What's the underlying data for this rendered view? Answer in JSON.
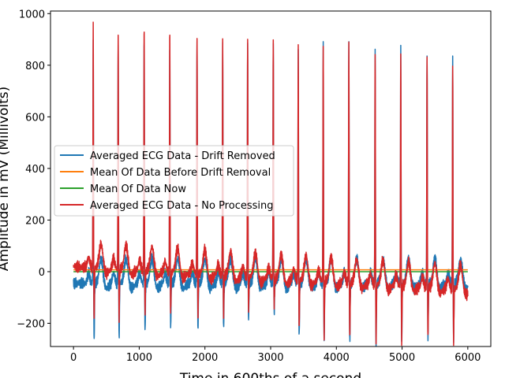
{
  "chart_data": {
    "type": "line",
    "title": "",
    "xlabel": "Time in 600ths of a second",
    "ylabel": "Amplitude in mV (Millivolts)",
    "xlim": [
      -350,
      6350
    ],
    "ylim": [
      -290,
      1010
    ],
    "xticks": [
      0,
      1000,
      2000,
      3000,
      4000,
      5000,
      6000
    ],
    "xtick_labels": [
      "0",
      "1000",
      "2000",
      "3000",
      "4000",
      "5000",
      "6000"
    ],
    "yticks": [
      -200,
      0,
      200,
      400,
      600,
      800,
      1000
    ],
    "ytick_labels": [
      "−200",
      "0",
      "200",
      "400",
      "600",
      "800",
      "1000"
    ],
    "grid": false,
    "legend_position": "center-left",
    "beats": [
      {
        "x": 300,
        "peak": 940,
        "trough": -215
      },
      {
        "x": 680,
        "peak": 925,
        "trough": -205
      },
      {
        "x": 1075,
        "peak": 950,
        "trough": -180
      },
      {
        "x": 1465,
        "peak": 935,
        "trough": -165
      },
      {
        "x": 1880,
        "peak": 930,
        "trough": -175
      },
      {
        "x": 2270,
        "peak": 920,
        "trough": -170
      },
      {
        "x": 2650,
        "peak": 938,
        "trough": -135
      },
      {
        "x": 3040,
        "peak": 935,
        "trough": -110
      },
      {
        "x": 3420,
        "peak": 905,
        "trough": -195
      },
      {
        "x": 3800,
        "peak": 925,
        "trough": -220
      },
      {
        "x": 4190,
        "peak": 930,
        "trough": -220
      },
      {
        "x": 4590,
        "peak": 918,
        "trough": -230
      },
      {
        "x": 4980,
        "peak": 910,
        "trough": -225
      },
      {
        "x": 5380,
        "peak": 905,
        "trough": -200
      },
      {
        "x": 5770,
        "peak": 885,
        "trough": -210
      }
    ],
    "series": [
      {
        "name": "Averaged ECG Data - Drift Removed",
        "color": "#1f77b4",
        "x_range": [
          0,
          6000
        ],
        "baseline": -45
      },
      {
        "name": "Mean Of Data Before Drift Removal",
        "color": "#ff7f0e",
        "x_range": [
          0,
          6000
        ],
        "values": [
          7,
          7
        ]
      },
      {
        "name": "Mean Of Data Now",
        "color": "#2ca02c",
        "x_range": [
          0,
          6000
        ],
        "values": [
          0,
          0
        ]
      },
      {
        "name": "Averaged ECG Data - No Processing",
        "color": "#d62728",
        "x_range": [
          0,
          6000
        ],
        "baseline_start": 20,
        "baseline_end": -70
      }
    ]
  }
}
